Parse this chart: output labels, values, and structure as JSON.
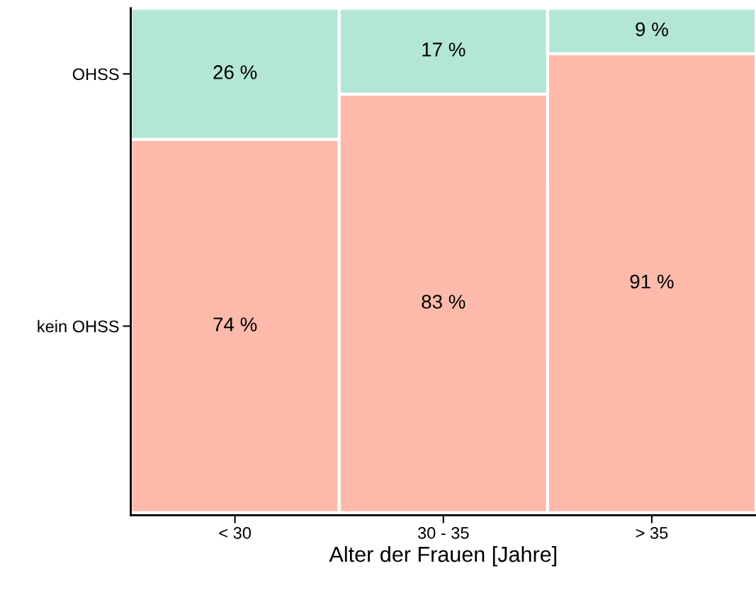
{
  "chart_data": {
    "type": "bar",
    "stacked": true,
    "xlabel": "Alter der Frauen [Jahre]",
    "categories": [
      "< 30",
      "30 - 35",
      "> 35"
    ],
    "series": [
      {
        "name": "kein OHSS",
        "color": "#fdbaaa",
        "values": [
          74,
          83,
          91
        ],
        "value_labels": [
          "74 %",
          "83 %",
          "91 %"
        ]
      },
      {
        "name": "OHSS",
        "color": "#b3e6d6",
        "values": [
          26,
          17,
          9
        ],
        "value_labels": [
          "26 %",
          "17 %",
          "9 %"
        ]
      }
    ],
    "grid": false,
    "legend": false
  }
}
